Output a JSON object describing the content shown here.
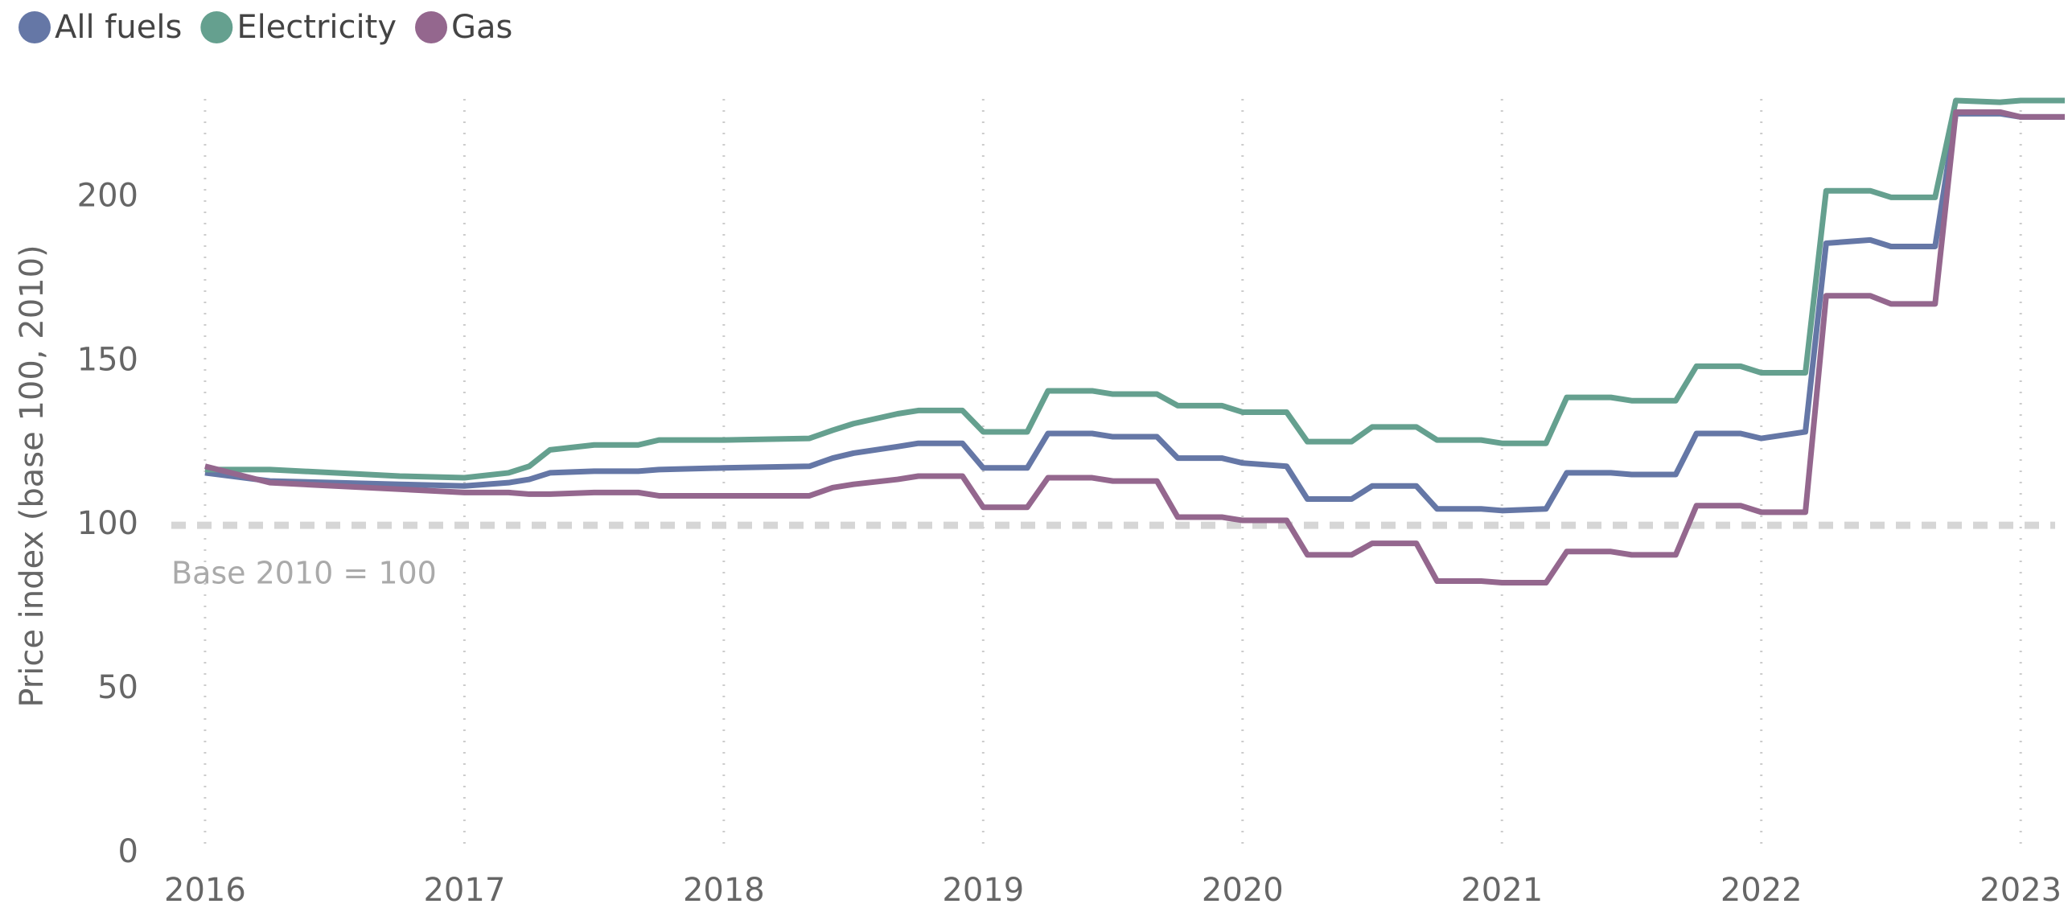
{
  "chart_data": {
    "type": "line",
    "ylabel": "Price index (base 100, 2010)",
    "x": [
      2016,
      2016.25,
      2016.5,
      2016.75,
      2017,
      2017.17,
      2017.25,
      2017.33,
      2017.5,
      2017.67,
      2017.75,
      2018,
      2018.33,
      2018.42,
      2018.5,
      2018.67,
      2018.75,
      2018.92,
      2019,
      2019.17,
      2019.25,
      2019.42,
      2019.5,
      2019.67,
      2019.75,
      2019.92,
      2020,
      2020.17,
      2020.25,
      2020.42,
      2020.5,
      2020.67,
      2020.75,
      2020.92,
      2021,
      2021.17,
      2021.25,
      2021.42,
      2021.5,
      2021.67,
      2021.75,
      2021.92,
      2022,
      2022.17,
      2022.25,
      2022.42,
      2022.5,
      2022.67,
      2022.75,
      2022.92,
      2023,
      2023.17
    ],
    "series": [
      {
        "name": "All fuels",
        "color": "#6577a6",
        "values": [
          116,
          113.5,
          113,
          112.5,
          112,
          113,
          114,
          116,
          116.5,
          116.5,
          117,
          117.5,
          118,
          120.5,
          122,
          124,
          125,
          125,
          117.5,
          117.5,
          128,
          128,
          127,
          127,
          120.5,
          120.5,
          119,
          118,
          108,
          108,
          112,
          112,
          105,
          105,
          104.5,
          105,
          116,
          116,
          115.5,
          115.5,
          128,
          128,
          126.5,
          128.5,
          186,
          187,
          185,
          185,
          225.5,
          225.5,
          224.5,
          224.5
        ]
      },
      {
        "name": "Electricity",
        "color": "#65a08f",
        "values": [
          117,
          117,
          116,
          115,
          114.5,
          116,
          118,
          123,
          124.5,
          124.5,
          126,
          126,
          126.5,
          129,
          131,
          134,
          135,
          135,
          128.5,
          128.5,
          141,
          141,
          140,
          140,
          136.5,
          136.5,
          134.5,
          134.5,
          125.5,
          125.5,
          130,
          130,
          126,
          126,
          125,
          125,
          139,
          139,
          138,
          138,
          148.5,
          148.5,
          146.5,
          146.5,
          202,
          202,
          200,
          200,
          229.5,
          229,
          229.5,
          229.5
        ]
      },
      {
        "name": "Gas",
        "color": "#94678e",
        "values": [
          118,
          113,
          112,
          111,
          110,
          110,
          109.5,
          109.5,
          110,
          110,
          109,
          109,
          109,
          111.5,
          112.5,
          114,
          115,
          115,
          105.5,
          105.5,
          114.5,
          114.5,
          113.5,
          113.5,
          102.5,
          102.5,
          101.5,
          101.5,
          91,
          91,
          94.5,
          94.5,
          83,
          83,
          82.5,
          82.5,
          92,
          92,
          91,
          91,
          106,
          106,
          104,
          104,
          170,
          170,
          167.5,
          167.5,
          226,
          226,
          224.5,
          224.5
        ]
      }
    ],
    "xlim": [
      2015.87,
      2023.17
    ],
    "xticks": [
      2016,
      2017,
      2018,
      2019,
      2020,
      2021,
      2022,
      2023
    ],
    "ylim": [
      0,
      230
    ],
    "yticks": [
      0,
      50,
      100,
      150,
      200
    ],
    "reference": {
      "value": 100,
      "label": "Base 2010 = 100"
    },
    "grid": true,
    "legend": "top-left"
  }
}
